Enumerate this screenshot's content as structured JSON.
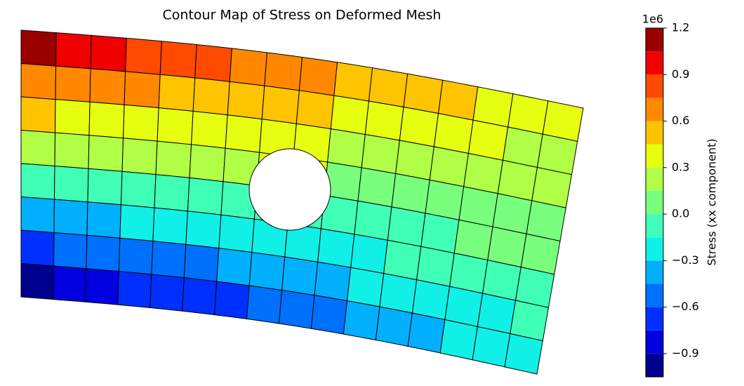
{
  "chart_data": {
    "type": "contour",
    "title": "Contour Map of Stress on Deformed Mesh",
    "field": {
      "z": [
        [
          1.1,
          0.94,
          0.9,
          0.85,
          0.81,
          0.76,
          0.72,
          0.67,
          0.63,
          0.58,
          0.54,
          0.49,
          0.45,
          0.4,
          0.36,
          0.31
        ],
        [
          0.72,
          0.69,
          0.66,
          0.63,
          0.59,
          0.56,
          0.53,
          0.5,
          0.47,
          0.43,
          0.4,
          0.37,
          0.34,
          0.3,
          0.27,
          0.24
        ],
        [
          0.45,
          0.43,
          0.41,
          0.39,
          0.37,
          0.35,
          0.33,
          0.32,
          0.3,
          0.28,
          0.26,
          0.24,
          0.22,
          0.2,
          0.18,
          0.16
        ],
        [
          0.19,
          0.18,
          0.17,
          0.17,
          0.16,
          0.15,
          0.15,
          0.4,
          0.4,
          0.13,
          0.12,
          0.11,
          0.11,
          0.1,
          0.09,
          0.09
        ],
        [
          -0.09,
          -0.08,
          -0.07,
          -0.07,
          -0.06,
          -0.05,
          -0.05,
          -0.04,
          -0.03,
          -0.03,
          -0.02,
          -0.01,
          -0.01,
          0.0,
          0.01,
          0.01
        ],
        [
          -0.35,
          -0.33,
          -0.31,
          -0.29,
          -0.27,
          -0.25,
          -0.23,
          -0.22,
          -0.2,
          -0.18,
          -0.16,
          -0.14,
          -0.12,
          -0.1,
          -0.08,
          -0.06
        ],
        [
          -0.62,
          -0.59,
          -0.56,
          -0.53,
          -0.49,
          -0.46,
          -0.43,
          -0.4,
          -0.37,
          -0.33,
          -0.3,
          -0.27,
          -0.24,
          -0.2,
          -0.17,
          -0.14
        ],
        [
          -1.0,
          -0.84,
          -0.8,
          -0.75,
          -0.71,
          -0.66,
          -0.62,
          -0.57,
          -0.53,
          -0.48,
          -0.44,
          -0.39,
          -0.35,
          -0.3,
          -0.26,
          -0.21
        ]
      ]
    },
    "colorbar": {
      "label": "Stress (xx component)",
      "offset_label": "1e6",
      "levels": [
        -1.05,
        -0.9,
        -0.75,
        -0.6,
        -0.45,
        -0.3,
        -0.15,
        0,
        0.15,
        0.3,
        0.45,
        0.6,
        0.75,
        0.9,
        1.05,
        1.2
      ],
      "colors": [
        "#00008f",
        "#0000e0",
        "#0030ff",
        "#0070ff",
        "#00b0ff",
        "#10f0e6",
        "#40ffb6",
        "#78ff7e",
        "#b0ff46",
        "#e6ff10",
        "#ffc400",
        "#ff8800",
        "#ff4a00",
        "#f00000",
        "#9a0000"
      ],
      "ticks": [
        1.2,
        0.9,
        0.6,
        0.3,
        {
          "value": 0,
          "label": "0.0"
        },
        {
          "value": -0.3,
          "label": "−0.3"
        },
        {
          "value": -0.6,
          "label": "−0.6"
        },
        {
          "value": -0.9,
          "label": "−0.9"
        }
      ]
    }
  }
}
